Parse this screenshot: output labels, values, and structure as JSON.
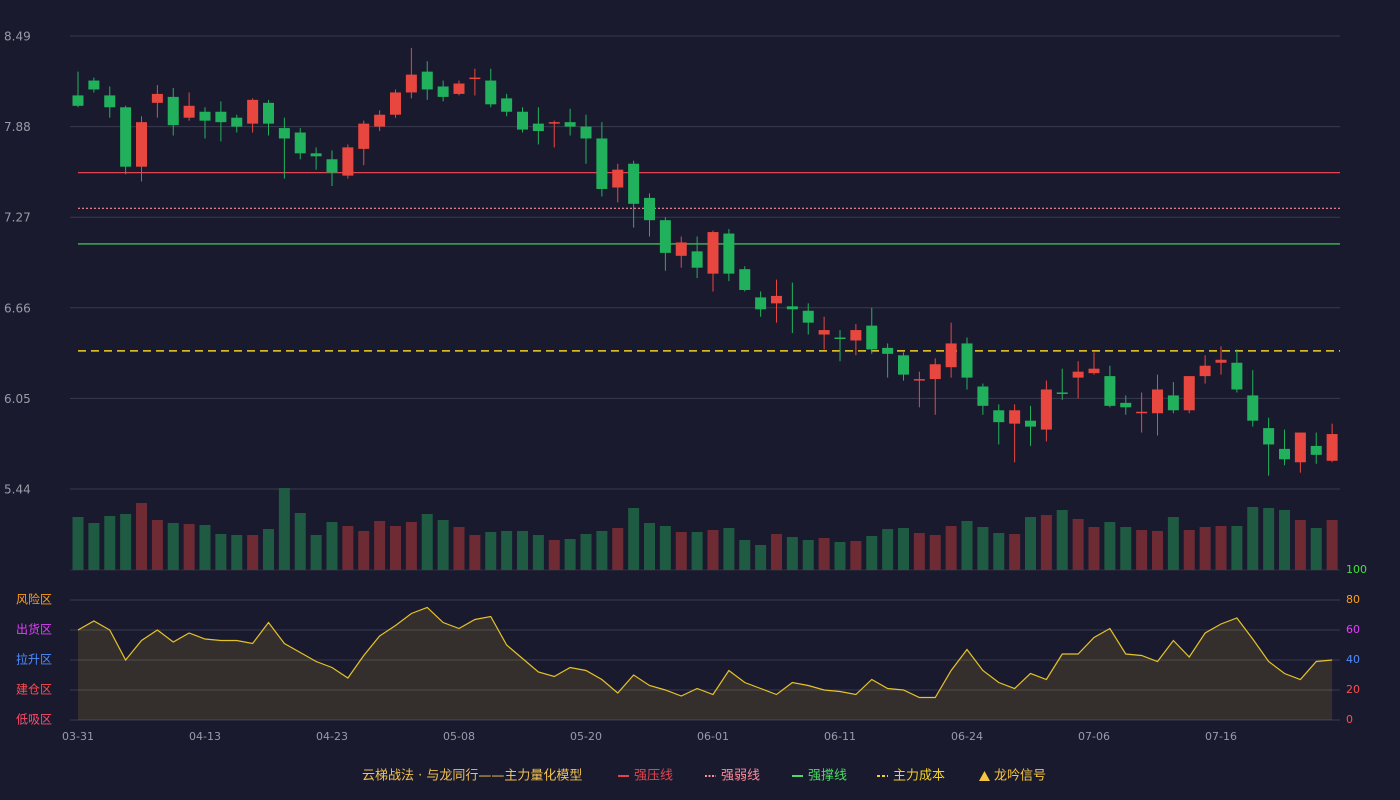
{
  "chart_data": {
    "type": "candlestick",
    "categories": [
      "03-31",
      null,
      null,
      null,
      null,
      null,
      null,
      null,
      "04-13",
      null,
      null,
      null,
      null,
      null,
      null,
      null,
      "04-23",
      null,
      null,
      null,
      null,
      null,
      null,
      null,
      "05-08",
      null,
      null,
      null,
      null,
      null,
      null,
      null,
      "05-20",
      null,
      null,
      null,
      null,
      null,
      null,
      null,
      "06-01",
      null,
      null,
      null,
      null,
      null,
      null,
      null,
      "06-11",
      null,
      null,
      null,
      null,
      null,
      null,
      null,
      "06-24",
      null,
      null,
      null,
      null,
      null,
      null,
      null,
      "07-06",
      null,
      null,
      null,
      null,
      null,
      null,
      null,
      "07-16",
      null,
      null,
      null,
      null,
      null,
      null,
      null
    ],
    "open": [
      8.09,
      8.19,
      8.09,
      8.01,
      7.61,
      8.04,
      8.08,
      7.94,
      7.98,
      7.98,
      7.94,
      7.9,
      8.04,
      7.87,
      7.84,
      7.7,
      7.66,
      7.55,
      7.73,
      7.88,
      7.96,
      8.11,
      8.25,
      8.15,
      8.1,
      8.2,
      8.19,
      8.07,
      7.98,
      7.9,
      7.9,
      7.91,
      7.88,
      7.8,
      7.47,
      7.63,
      7.4,
      7.25,
      7.01,
      7.04,
      6.89,
      7.16,
      6.92,
      6.73,
      6.69,
      6.67,
      6.64,
      6.48,
      6.46,
      6.44,
      6.54,
      6.39,
      6.34,
      6.17,
      6.18,
      6.26,
      6.42,
      6.13,
      5.97,
      5.88,
      5.9,
      5.84,
      6.09,
      6.19,
      6.22,
      6.2,
      6.02,
      5.95,
      5.95,
      6.07,
      5.97,
      6.2,
      6.29,
      6.29,
      6.07,
      5.85,
      5.71,
      5.62,
      5.73,
      5.63
    ],
    "close": [
      8.02,
      8.13,
      8.01,
      7.61,
      7.91,
      8.1,
      7.89,
      8.02,
      7.92,
      7.91,
      7.88,
      8.06,
      7.9,
      7.8,
      7.7,
      7.68,
      7.57,
      7.74,
      7.9,
      7.96,
      8.11,
      8.23,
      8.13,
      8.08,
      8.17,
      8.21,
      8.03,
      7.98,
      7.86,
      7.85,
      7.91,
      7.88,
      7.8,
      7.46,
      7.59,
      7.36,
      7.25,
      7.03,
      7.1,
      6.93,
      7.17,
      6.89,
      6.78,
      6.65,
      6.74,
      6.65,
      6.56,
      6.51,
      6.45,
      6.51,
      6.38,
      6.35,
      6.21,
      6.18,
      6.28,
      6.42,
      6.19,
      6.0,
      5.89,
      5.97,
      5.86,
      6.11,
      6.08,
      6.23,
      6.25,
      6.0,
      5.99,
      5.96,
      6.11,
      5.97,
      6.2,
      6.27,
      6.31,
      6.11,
      5.9,
      5.74,
      5.64,
      5.82,
      5.67,
      5.81
    ],
    "high": [
      8.25,
      8.21,
      8.15,
      8.02,
      7.95,
      8.16,
      8.14,
      8.11,
      8.01,
      8.05,
      7.96,
      8.07,
      8.06,
      7.94,
      7.87,
      7.74,
      7.72,
      7.76,
      7.92,
      7.99,
      8.13,
      8.41,
      8.32,
      8.19,
      8.19,
      8.27,
      8.27,
      8.1,
      8.01,
      8.01,
      7.92,
      8.0,
      7.96,
      7.91,
      7.63,
      7.65,
      7.43,
      7.27,
      7.14,
      7.14,
      7.18,
      7.19,
      6.94,
      6.77,
      6.85,
      6.83,
      6.69,
      6.6,
      6.51,
      6.55,
      6.66,
      6.42,
      6.36,
      6.23,
      6.32,
      6.56,
      6.46,
      6.15,
      6.01,
      6.01,
      6.0,
      6.17,
      6.25,
      6.3,
      6.36,
      6.27,
      6.07,
      6.09,
      6.21,
      6.16,
      6.2,
      6.34,
      6.4,
      6.38,
      6.24,
      5.92,
      5.84,
      5.82,
      5.82,
      5.88
    ],
    "low": [
      8.01,
      8.11,
      7.94,
      7.56,
      7.51,
      7.94,
      7.82,
      7.92,
      7.8,
      7.78,
      7.84,
      7.84,
      7.82,
      7.53,
      7.66,
      7.59,
      7.48,
      7.53,
      7.62,
      7.85,
      7.94,
      8.07,
      8.06,
      8.05,
      8.09,
      8.09,
      8.01,
      7.95,
      7.84,
      7.76,
      7.74,
      7.82,
      7.63,
      7.41,
      7.37,
      7.2,
      7.14,
      6.91,
      6.93,
      6.86,
      6.77,
      6.84,
      6.77,
      6.6,
      6.56,
      6.49,
      6.48,
      6.38,
      6.3,
      6.34,
      6.35,
      6.19,
      6.17,
      5.99,
      5.94,
      6.19,
      6.11,
      5.94,
      5.74,
      5.62,
      5.73,
      5.76,
      6.04,
      6.05,
      6.21,
      5.99,
      5.94,
      5.82,
      5.8,
      5.95,
      5.95,
      6.15,
      6.21,
      6.09,
      5.86,
      5.53,
      5.6,
      5.55,
      5.61,
      5.62
    ],
    "ylim": [
      5.44,
      8.49
    ],
    "yticks": [
      8.49,
      7.88,
      7.27,
      6.66,
      6.05,
      5.44
    ],
    "grid": true,
    "up_color": "#e8473f",
    "down_color": "#21b15c",
    "levels": [
      {
        "name": "强压线",
        "value": 7.57,
        "color": "#e0454f",
        "style": "solid"
      },
      {
        "name": "强弱线",
        "value": 7.33,
        "color": "#ff8a9a",
        "style": "dotted"
      },
      {
        "name": "强撑线",
        "value": 7.09,
        "color": "#4cd964",
        "style": "solid"
      },
      {
        "name": "主力成本",
        "value": 6.37,
        "color": "#f2d024",
        "style": "dashed"
      }
    ],
    "volume": {
      "values": [
        53,
        47,
        54,
        56,
        67,
        50,
        47,
        46,
        45,
        36,
        35,
        35,
        41,
        82,
        57,
        35,
        48,
        44,
        39,
        49,
        44,
        48,
        56,
        50,
        43,
        35,
        38,
        39,
        39,
        35,
        30,
        31,
        36,
        39,
        42,
        62,
        47,
        44,
        38,
        38,
        40,
        42,
        30,
        25,
        36,
        33,
        30,
        32,
        28,
        29,
        34,
        41,
        42,
        37,
        35,
        44,
        49,
        43,
        37,
        36,
        53,
        55,
        60,
        51,
        43,
        48,
        43,
        40,
        39,
        53,
        40,
        43,
        44,
        44,
        63,
        62,
        60,
        50,
        42,
        50
      ],
      "ylim": [
        0,
        82
      ],
      "up_color": "#6e2b34",
      "down_color": "#1f5a42"
    },
    "indicator": {
      "values": [
        60,
        66,
        60,
        40,
        53,
        60,
        52,
        58,
        54,
        53,
        53,
        51,
        65,
        51,
        45,
        39,
        35,
        28,
        43,
        56,
        63,
        71,
        75,
        65,
        61,
        67,
        69,
        50,
        41,
        32,
        29,
        35,
        33,
        27,
        18,
        30,
        23,
        20,
        16,
        21,
        17,
        33,
        25,
        21,
        17,
        25,
        23,
        20,
        19,
        17,
        27,
        21,
        20,
        15,
        15,
        33,
        47,
        33,
        25,
        21,
        31,
        27,
        44,
        44,
        55,
        61,
        44,
        43,
        39,
        53,
        42,
        58,
        64,
        68,
        54,
        39,
        31,
        27,
        39,
        40
      ],
      "ylim": [
        0,
        100
      ],
      "yticks": [
        0,
        20,
        40,
        60,
        80,
        100
      ],
      "ytick_colors": [
        "#ff4d4d",
        "#ff4d4d",
        "#4f8dff",
        "#e040fb",
        "#ff9f1a",
        "#39e639"
      ],
      "color": "#e6c229",
      "zones": [
        {
          "label": "风险区",
          "value": 80,
          "color": "#ff9f1a"
        },
        {
          "label": "出货区",
          "value": 60,
          "color": "#e040fb"
        },
        {
          "label": "拉升区",
          "value": 40,
          "color": "#4f8dff"
        },
        {
          "label": "建仓区",
          "value": 20,
          "color": "#ff4d4d"
        },
        {
          "label": "低吸区",
          "value": 0,
          "color": "#ff4d6d"
        }
      ]
    },
    "legend_title": "云梯战法 · 与龙同行——主力量化模型",
    "signal": {
      "name": "龙吟信号",
      "color": "#f5c542"
    }
  }
}
